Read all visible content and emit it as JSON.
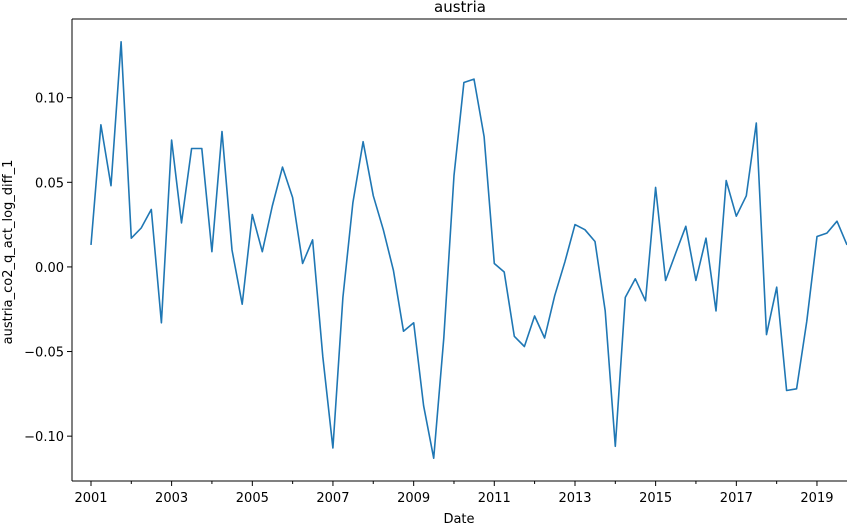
{
  "chart_data": {
    "type": "line",
    "title": "austria",
    "xlabel": "Date",
    "ylabel": "austria_co2_q_act_log_diff_1",
    "grid": false,
    "xlim": [
      "2000-07-13",
      "2019-09-30"
    ],
    "ylim": [
      -0.1265,
      0.1465
    ],
    "x_ticks": [
      "2001",
      "2003",
      "2005",
      "2007",
      "2009",
      "2011",
      "2013",
      "2015",
      "2017",
      "2019"
    ],
    "y_ticks": [
      "0.10",
      "0.05",
      "0.00",
      "−0.05",
      "−0.10"
    ],
    "y_tick_values": [
      0.1,
      0.05,
      0.0,
      -0.05,
      -0.1
    ],
    "series": [
      {
        "color": "#1f77b4",
        "x": [
          "2001-01-01",
          "2001-04-01",
          "2001-07-01",
          "2001-10-01",
          "2002-01-01",
          "2002-04-01",
          "2002-07-01",
          "2002-10-01",
          "2003-01-01",
          "2003-04-01",
          "2003-07-01",
          "2003-10-01",
          "2004-01-01",
          "2004-04-01",
          "2004-07-01",
          "2004-10-01",
          "2005-01-01",
          "2005-04-01",
          "2005-07-01",
          "2005-10-01",
          "2006-01-01",
          "2006-04-01",
          "2006-07-01",
          "2006-10-01",
          "2007-01-01",
          "2007-04-01",
          "2007-07-01",
          "2007-10-01",
          "2008-01-01",
          "2008-04-01",
          "2008-07-01",
          "2008-10-01",
          "2009-01-01",
          "2009-04-01",
          "2009-07-01",
          "2009-10-01",
          "2010-01-01",
          "2010-04-01",
          "2010-07-01",
          "2010-10-01",
          "2011-01-01",
          "2011-04-01",
          "2011-07-01",
          "2011-10-01",
          "2012-01-01",
          "2012-04-01",
          "2012-07-01",
          "2012-10-01",
          "2013-01-01",
          "2013-04-01",
          "2013-07-01",
          "2013-10-01",
          "2014-01-01",
          "2014-04-01",
          "2014-07-01",
          "2014-10-01",
          "2015-01-01",
          "2015-04-01",
          "2015-07-01",
          "2015-10-01",
          "2016-01-01",
          "2016-04-01",
          "2016-07-01",
          "2016-10-01",
          "2017-01-01",
          "2017-04-01",
          "2017-07-01",
          "2017-10-01",
          "2018-01-01",
          "2018-04-01",
          "2018-07-01",
          "2018-10-01",
          "2019-01-01",
          "2019-04-01",
          "2019-07-01",
          "2019-09-30"
        ],
        "y": [
          0.013,
          0.084,
          0.048,
          0.133,
          0.017,
          0.023,
          0.034,
          -0.033,
          0.075,
          0.026,
          0.07,
          0.07,
          0.009,
          0.08,
          0.01,
          -0.022,
          0.031,
          0.009,
          0.036,
          0.059,
          0.041,
          0.002,
          0.016,
          -0.053,
          -0.107,
          -0.018,
          0.038,
          0.074,
          0.042,
          0.022,
          -0.002,
          -0.038,
          -0.033,
          -0.082,
          -0.113,
          -0.042,
          0.054,
          0.109,
          0.111,
          0.077,
          0.002,
          -0.003,
          -0.041,
          -0.047,
          -0.029,
          -0.042,
          -0.017,
          0.003,
          0.025,
          0.022,
          0.015,
          -0.026,
          -0.106,
          -0.018,
          -0.007,
          -0.02,
          0.047,
          -0.008,
          0.008,
          0.024,
          -0.008,
          0.017,
          -0.026,
          0.051,
          0.03,
          0.042,
          0.085,
          -0.04,
          -0.012,
          -0.073,
          -0.072,
          -0.032,
          0.018,
          0.02,
          0.027,
          0.013
        ]
      }
    ]
  }
}
